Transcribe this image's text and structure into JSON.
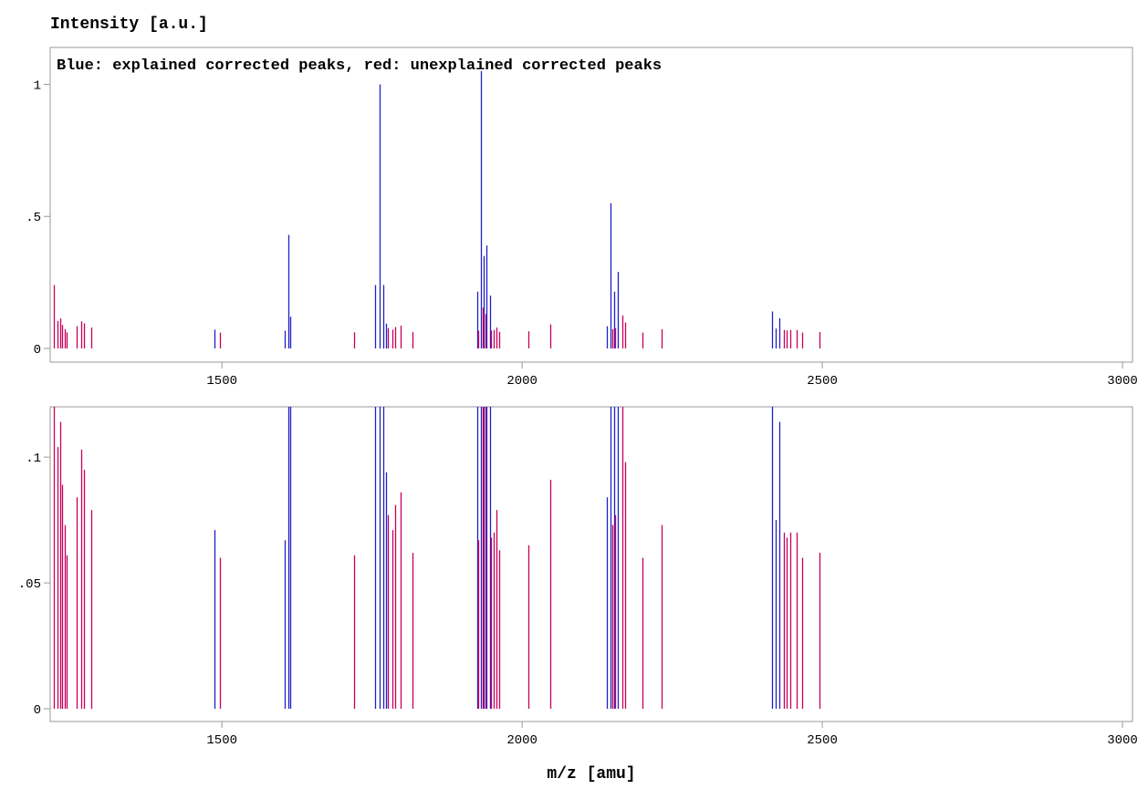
{
  "chart_data": {
    "type": "bar",
    "ylabel": "Intensity [a.u.]",
    "xlabel": "m/z [amu]",
    "annotation": "Blue: explained corrected peaks, red: unexplained corrected peaks",
    "xlim": [
      1220,
      3000
    ],
    "x_ticks": [
      "1500",
      "2000",
      "2500",
      "3000"
    ],
    "colors": {
      "explained": "#2020c8",
      "unexplained": "#c8005a"
    },
    "panels": [
      {
        "ylim": [
          0,
          1.05
        ],
        "y_ticks": [
          {
            "v": 0,
            "label": "0"
          },
          {
            "v": 0.5,
            "label": ".5"
          },
          {
            "v": 1,
            "label": "1"
          }
        ]
      },
      {
        "ylim": [
          0,
          0.12
        ],
        "y_ticks": [
          {
            "v": 0,
            "label": "0"
          },
          {
            "v": 0.05,
            "label": ".05"
          },
          {
            "v": 0.1,
            "label": ".1"
          }
        ]
      }
    ],
    "series": [
      {
        "name": "explained",
        "points": [
          [
            1487,
            0.071
          ],
          [
            1605,
            0.067
          ],
          [
            1610,
            0.43
          ],
          [
            1614,
            0.12
          ],
          [
            1755,
            0.24
          ],
          [
            1762,
            1.0
          ],
          [
            1768,
            0.24
          ],
          [
            1773,
            0.094
          ],
          [
            1926,
            0.215
          ],
          [
            1931,
            1.08
          ],
          [
            1936,
            0.35
          ],
          [
            1941,
            0.39
          ],
          [
            1946,
            0.2
          ],
          [
            2141,
            0.084
          ],
          [
            2147,
            0.55
          ],
          [
            2153,
            0.215
          ],
          [
            2159,
            0.29
          ],
          [
            2416,
            0.14
          ],
          [
            2422,
            0.075
          ],
          [
            2429,
            0.114
          ]
        ]
      },
      {
        "name": "unexplained",
        "points": [
          [
            1220,
            0.24
          ],
          [
            1226,
            0.104
          ],
          [
            1230,
            0.114
          ],
          [
            1233,
            0.089
          ],
          [
            1238,
            0.073
          ],
          [
            1242,
            0.061
          ],
          [
            1258,
            0.084
          ],
          [
            1265,
            0.103
          ],
          [
            1270,
            0.095
          ],
          [
            1282,
            0.079
          ],
          [
            1497,
            0.06
          ],
          [
            1720,
            0.061
          ],
          [
            1776,
            0.077
          ],
          [
            1784,
            0.071
          ],
          [
            1789,
            0.081
          ],
          [
            1797,
            0.086
          ],
          [
            1818,
            0.062
          ],
          [
            1927,
            0.067
          ],
          [
            1935,
            0.155
          ],
          [
            1939,
            0.13
          ],
          [
            1948,
            0.068
          ],
          [
            1953,
            0.07
          ],
          [
            1957,
            0.079
          ],
          [
            1962,
            0.063
          ],
          [
            2011,
            0.065
          ],
          [
            2047,
            0.091
          ],
          [
            2151,
            0.073
          ],
          [
            2155,
            0.077
          ],
          [
            2167,
            0.125
          ],
          [
            2171,
            0.098
          ],
          [
            2200,
            0.06
          ],
          [
            2232,
            0.073
          ],
          [
            2436,
            0.07
          ],
          [
            2441,
            0.068
          ],
          [
            2446,
            0.07
          ],
          [
            2458,
            0.07
          ],
          [
            2466,
            0.06
          ],
          [
            2496,
            0.062
          ]
        ]
      }
    ]
  }
}
